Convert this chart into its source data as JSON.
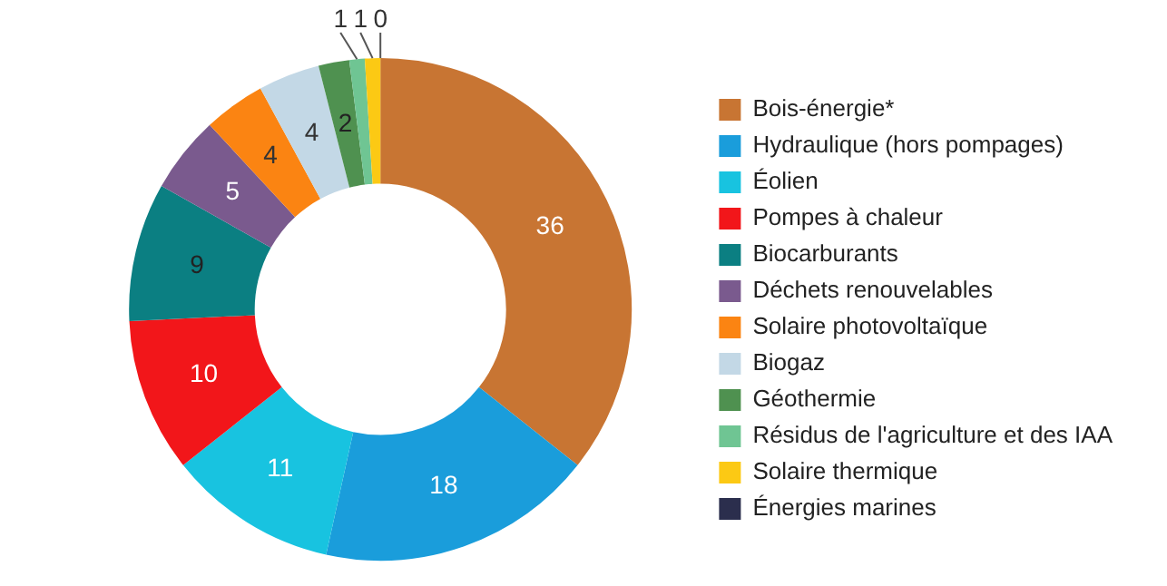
{
  "chart_data": {
    "type": "donut",
    "categories": [
      "Bois-énergie*",
      "Hydraulique (hors pompages)",
      "Éolien",
      "Pompes à chaleur",
      "Biocarburants",
      "Déchets renouvelables",
      "Solaire photovoltaïque",
      "Biogaz",
      "Géothermie",
      "Résidus de l'agriculture et des IAA",
      "Solaire thermique",
      "Énergies marines"
    ],
    "values": [
      36,
      18,
      11,
      10,
      9,
      5,
      4,
      4,
      2,
      1,
      1,
      0
    ],
    "colors": [
      "#c87533",
      "#1a9ddb",
      "#18c3e0",
      "#f2161a",
      "#0b7f82",
      "#7a5a8e",
      "#fb8412",
      "#c3d8e6",
      "#4f9150",
      "#6fc593",
      "#fcc914",
      "#2b2e4d"
    ],
    "value_labels": [
      "36",
      "18",
      "11",
      "10",
      "9",
      "5",
      "4",
      "4",
      "2",
      "1",
      "1",
      "0"
    ],
    "legend": "right"
  }
}
